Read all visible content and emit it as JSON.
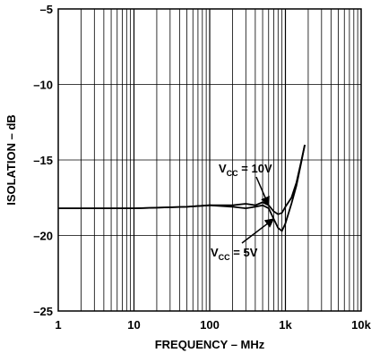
{
  "chart_data": {
    "type": "line",
    "title": "",
    "xlabel": "FREQUENCY – MHz",
    "ylabel": "ISOLATION – dB",
    "xscale": "log",
    "xlim": [
      1,
      10000
    ],
    "ylim": [
      -25,
      -5
    ],
    "grid": true,
    "xticks": [
      {
        "value": 1,
        "label": "1"
      },
      {
        "value": 10,
        "label": "10"
      },
      {
        "value": 100,
        "label": "100"
      },
      {
        "value": 1000,
        "label": "1k"
      },
      {
        "value": 10000,
        "label": "10k"
      }
    ],
    "yticks": [
      {
        "value": -5,
        "label": "–5"
      },
      {
        "value": -10,
        "label": "–10"
      },
      {
        "value": -15,
        "label": "–15"
      },
      {
        "value": -20,
        "label": "–20"
      },
      {
        "value": -25,
        "label": "–25"
      }
    ],
    "series": [
      {
        "name": "VCC = 10V",
        "color": "#000000",
        "x": [
          1,
          10,
          50,
          100,
          200,
          300,
          400,
          500,
          600,
          700,
          800,
          900,
          1000,
          1200,
          1400,
          1600,
          1800
        ],
        "y": [
          -18.2,
          -18.2,
          -18.1,
          -18.0,
          -18.0,
          -17.9,
          -18.0,
          -17.8,
          -18.0,
          -18.4,
          -18.6,
          -18.5,
          -18.1,
          -17.5,
          -16.5,
          -15.2,
          -14.0
        ]
      },
      {
        "name": "VCC = 5V",
        "color": "#000000",
        "x": [
          1,
          10,
          50,
          100,
          200,
          300,
          400,
          500,
          600,
          700,
          800,
          900,
          1000,
          1200,
          1400,
          1600,
          1800
        ],
        "y": [
          -18.2,
          -18.2,
          -18.1,
          -18.0,
          -18.1,
          -18.2,
          -18.1,
          -18.0,
          -18.2,
          -18.9,
          -19.5,
          -19.7,
          -19.2,
          -17.9,
          -16.7,
          -15.3,
          -14.0
        ]
      }
    ],
    "annotations": [
      {
        "main": "V",
        "sub": "CC",
        "rest": " = 10V",
        "series": 0,
        "arrow_x": 600
      },
      {
        "main": "V",
        "sub": "CC",
        "rest": " = 5V",
        "series": 1,
        "arrow_x": 700
      }
    ]
  }
}
